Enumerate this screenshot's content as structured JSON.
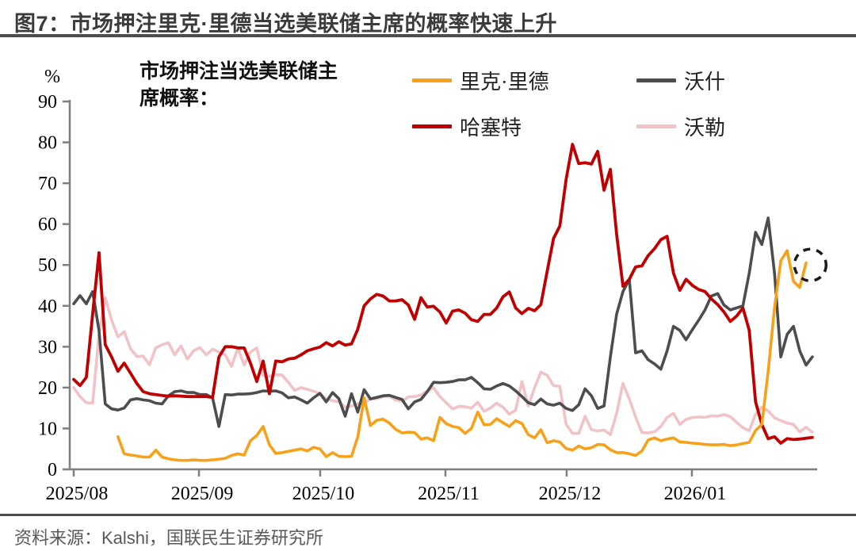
{
  "figure": {
    "title": "图7：市场押注里克·里德当选美联储主席的概率快速上升",
    "source": "资料来源：Kalshi，国联民生证券研究所"
  },
  "chart_data": {
    "type": "line",
    "note": "市场押注当选美联储主席概率：",
    "ylabel": "",
    "xlabel": "",
    "ylim": [
      0,
      90
    ],
    "x_domain_days": [
      0,
      184
    ],
    "x_unit": "days since 2025-08-01",
    "sample_step_days": 1.5625,
    "grid": false,
    "legend_position": "top, 2 columns",
    "axis_color": "#7f7f7f",
    "y_axis": {
      "unit": "%",
      "ticks": [
        0,
        10,
        20,
        30,
        40,
        50,
        60,
        70,
        80,
        90
      ]
    },
    "x_axis": {
      "ticks": [
        {
          "label": "2025/08",
          "day": 0
        },
        {
          "label": "2025/09",
          "day": 31
        },
        {
          "label": "2025/10",
          "day": 61
        },
        {
          "label": "2025/11",
          "day": 92
        },
        {
          "label": "2025/12",
          "day": 122
        },
        {
          "label": "2026/01",
          "day": 153
        }
      ]
    },
    "series": [
      {
        "id": "rieder",
        "name": "里克·里德",
        "color": "#F7A11A",
        "width": 3.6,
        "start_day": 10.94,
        "values": [
          8,
          3.8,
          3.5,
          3.3,
          3,
          3,
          4.7,
          3,
          2.6,
          2.3,
          2.2,
          2.2,
          2.3,
          2.2,
          2.2,
          2.3,
          2.5,
          2.7,
          3.4,
          3.8,
          3.5,
          7,
          8.3,
          10.5,
          6,
          3.9,
          4.1,
          4.4,
          4.7,
          5,
          4.5,
          5.4,
          5,
          3.1,
          4.1,
          3.2,
          3.1,
          3.2,
          8,
          17.5,
          10.7,
          12,
          12.3,
          11.3,
          9.8,
          8.9,
          9.1,
          9,
          7.4,
          7.7,
          7,
          12.7,
          11.2,
          10.5,
          10.2,
          8.8,
          10,
          14,
          10.9,
          11,
          12.4,
          11.4,
          10.5,
          11.9,
          11.2,
          8.5,
          7.7,
          9.7,
          6.5,
          7,
          6.7,
          5.1,
          4.7,
          5.7,
          5,
          5.3,
          6.1,
          6,
          4.8,
          4.1,
          4.1,
          3.8,
          3.4,
          4.5,
          7.2,
          7.7,
          7,
          7.4,
          7.7,
          6.7,
          6.6,
          6.4,
          6.3,
          6.1,
          6,
          6,
          6.1,
          5.8,
          6,
          6.3,
          6.6,
          9.5,
          11,
          24,
          39.5,
          51,
          53.5,
          46,
          44.5,
          50.5
        ]
      },
      {
        "id": "warsh",
        "name": "沃什",
        "color": "#4D4D4D",
        "width": 3.6,
        "start_day": 0,
        "values": [
          40.5,
          42.5,
          40.5,
          43.5,
          34,
          16,
          14.8,
          14.5,
          15,
          17,
          17.3,
          17,
          16.8,
          16.2,
          16,
          18,
          19,
          19.2,
          18.8,
          18.8,
          18.3,
          18.3,
          17.5,
          10.5,
          18.3,
          18.2,
          18.4,
          18.4,
          18.5,
          18.8,
          19.2,
          19.1,
          19.2,
          18.7,
          17.5,
          17.7,
          17,
          16.2,
          17.5,
          18.6,
          16.5,
          18.8,
          17.3,
          13,
          18.5,
          14,
          19.5,
          17.2,
          17.6,
          18,
          18.1,
          17.6,
          17.1,
          14.8,
          16.5,
          17.1,
          19,
          21.3,
          21.2,
          21.3,
          21.5,
          21.9,
          21.9,
          22.5,
          21.2,
          19.7,
          19.6,
          20.4,
          21,
          20.4,
          19.2,
          17.8,
          16.3,
          15.8,
          17.2,
          16,
          15.7,
          16.2,
          14.9,
          14.4,
          15.8,
          19.7,
          18,
          14.9,
          15.5,
          27.5,
          38,
          43.5,
          46.5,
          28.5,
          29,
          26.8,
          25.8,
          24.5,
          29,
          35,
          34,
          31.7,
          34.2,
          36.5,
          39,
          42.4,
          43,
          40.2,
          39,
          39.5,
          40,
          48,
          58,
          55,
          61.5,
          48,
          27.5,
          33,
          35,
          29,
          25.5,
          27.5
        ]
      },
      {
        "id": "hassett",
        "name": "哈塞特",
        "color": "#C00000",
        "width": 3.8,
        "start_day": 0,
        "values": [
          22,
          20.5,
          22.5,
          38,
          53,
          30.5,
          27.5,
          24,
          26,
          23.5,
          21,
          19,
          18.5,
          18.3,
          18.1,
          17.9,
          18,
          17.9,
          17.8,
          17.8,
          17.8,
          17.8,
          17.6,
          27.5,
          30,
          30,
          29.7,
          29.7,
          26,
          21.5,
          26.5,
          18.5,
          26.5,
          26.3,
          27,
          27.2,
          28,
          29,
          29.5,
          29.9,
          31,
          30.2,
          31.2,
          30.4,
          30.7,
          34.3,
          40,
          41.7,
          42.8,
          42.4,
          41.2,
          41.2,
          41.5,
          40.2,
          36.7,
          42,
          39.7,
          39.9,
          38.5,
          35.8,
          38.7,
          39,
          38.2,
          36.6,
          36.2,
          37.9,
          37.9,
          39.5,
          42.2,
          43.4,
          39.5,
          38.1,
          39.4,
          38.8,
          40.3,
          48.5,
          56.5,
          59.5,
          71,
          79.5,
          74.8,
          75,
          74.7,
          77.8,
          68.3,
          73.4,
          57.5,
          44.8,
          46.5,
          49.5,
          49.8,
          52.3,
          54,
          56.2,
          57,
          48,
          43.8,
          46.5,
          45,
          44,
          43.5,
          41.7,
          40.3,
          38.5,
          36.2,
          37.5,
          39.5,
          34,
          16.5,
          11,
          7.5,
          8,
          6.4,
          7.5,
          7.3,
          7.4,
          7.6,
          7.8
        ]
      },
      {
        "id": "waller",
        "name": "沃勒",
        "color": "#F1C2C6",
        "width": 3.6,
        "start_day": 0,
        "values": [
          20,
          17.8,
          16.3,
          16.2,
          33,
          42,
          36.5,
          32.4,
          33.7,
          29.5,
          27.6,
          27.7,
          25.6,
          29.7,
          30.5,
          31,
          28,
          30.2,
          27,
          29,
          29.8,
          28,
          29.4,
          28.7,
          28,
          25.2,
          29.7,
          25.5,
          28.7,
          29.7,
          23,
          22.8,
          23.1,
          23.1,
          21.3,
          19.3,
          20,
          19.6,
          19.1,
          18.5,
          17.2,
          16.8,
          16.5,
          15.2,
          15.5,
          16.1,
          16.2,
          17.3,
          17.3,
          17.8,
          17.9,
          17,
          16.6,
          17.7,
          17.8,
          18.2,
          19.2,
          20,
          17.8,
          16.3,
          14.8,
          15.4,
          15.3,
          15,
          16.4,
          14.2,
          15,
          16.2,
          15.2,
          13.5,
          14.5,
          21.5,
          15.5,
          20,
          23.8,
          23,
          20.5,
          20.3,
          11,
          8.8,
          8.8,
          13,
          9.7,
          9.4,
          9.6,
          8.5,
          13.7,
          21,
          17.2,
          12.8,
          9,
          8.9,
          9.2,
          10.5,
          12.7,
          13.7,
          11,
          12.2,
          12.7,
          12.8,
          12.7,
          13.1,
          13,
          13.4,
          12.9,
          11.5,
          10.2,
          9.4,
          13.5,
          15.2,
          14.3,
          12.6,
          11.9,
          11.3,
          11,
          9.2,
          10.3,
          9.1
        ]
      }
    ],
    "draw_order": [
      3,
      1,
      2,
      0
    ],
    "annotation": {
      "type": "dashed-circle",
      "day": 182.3,
      "value": 50
    }
  }
}
